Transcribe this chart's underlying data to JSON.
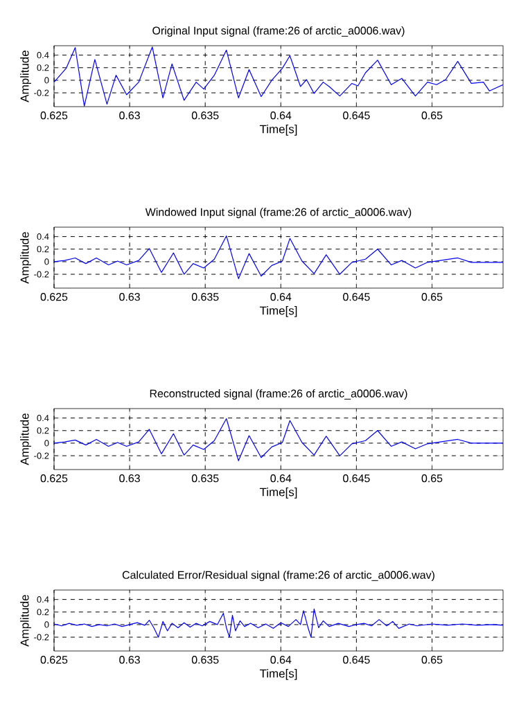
{
  "chart_data": [
    {
      "type": "line",
      "title": "Original Input signal (frame:26 of arctic_a0006.wav)",
      "xlabel": "Time[s]",
      "ylabel": "Amplitude",
      "color": "#0000ff",
      "grid": true,
      "xlim": [
        0.625,
        0.6547
      ],
      "ylim": [
        -0.42,
        0.55
      ],
      "xticks": [
        0.625,
        0.63,
        0.635,
        0.64,
        0.645,
        0.65
      ],
      "yticks": [
        -0.2,
        0,
        0.2,
        0.4
      ],
      "x": [
        0.625,
        0.6254,
        0.6258,
        0.6264,
        0.627,
        0.6277,
        0.6285,
        0.6291,
        0.6298,
        0.6306,
        0.6315,
        0.6322,
        0.6328,
        0.6336,
        0.6344,
        0.6349,
        0.6356,
        0.6364,
        0.6372,
        0.6379,
        0.6387,
        0.6394,
        0.6401,
        0.6406,
        0.6413,
        0.6417,
        0.6422,
        0.6428,
        0.6432,
        0.6439,
        0.6447,
        0.6451,
        0.6456,
        0.6464,
        0.6473,
        0.648,
        0.6489,
        0.6497,
        0.6503,
        0.6509,
        0.6517,
        0.6526,
        0.6534,
        0.6538,
        0.6547
      ],
      "values": [
        -0.03,
        0.08,
        0.19,
        0.52,
        -0.41,
        0.33,
        -0.38,
        0.08,
        -0.23,
        -0.03,
        0.53,
        -0.28,
        0.26,
        -0.32,
        -0.03,
        -0.14,
        0.08,
        0.48,
        -0.28,
        0.17,
        -0.26,
        0.0,
        0.19,
        0.39,
        -0.1,
        0.01,
        -0.21,
        -0.03,
        -0.1,
        -0.25,
        -0.05,
        -0.09,
        0.12,
        0.32,
        -0.07,
        0.03,
        -0.25,
        -0.03,
        -0.07,
        0.01,
        0.3,
        -0.05,
        -0.03,
        -0.17,
        -0.07
      ]
    },
    {
      "type": "line",
      "title": "Windowed Input signal (frame:26 of arctic_a0006.wav)",
      "xlabel": "Time[s]",
      "ylabel": "Amplitude",
      "color": "#0000ff",
      "grid": true,
      "xlim": [
        0.625,
        0.6547
      ],
      "ylim": [
        -0.42,
        0.55
      ],
      "xticks": [
        0.625,
        0.63,
        0.635,
        0.64,
        0.645,
        0.65
      ],
      "yticks": [
        -0.2,
        0,
        0.2,
        0.4
      ],
      "x": [
        0.625,
        0.6257,
        0.6264,
        0.6271,
        0.6278,
        0.6286,
        0.6292,
        0.6298,
        0.6306,
        0.6313,
        0.6321,
        0.6329,
        0.6336,
        0.6342,
        0.6349,
        0.6356,
        0.6364,
        0.6372,
        0.6379,
        0.6387,
        0.6394,
        0.6401,
        0.6406,
        0.6414,
        0.6422,
        0.643,
        0.6439,
        0.6447,
        0.6456,
        0.6464,
        0.6473,
        0.648,
        0.6489,
        0.6497,
        0.6517,
        0.6526,
        0.6547
      ],
      "values": [
        0.0,
        0.02,
        0.06,
        -0.03,
        0.06,
        -0.05,
        0.01,
        -0.05,
        0.02,
        0.21,
        -0.17,
        0.14,
        -0.2,
        -0.03,
        -0.1,
        0.04,
        0.41,
        -0.27,
        0.13,
        -0.23,
        -0.06,
        0.01,
        0.37,
        0.01,
        -0.19,
        0.11,
        -0.2,
        -0.01,
        0.04,
        0.2,
        -0.05,
        0.02,
        -0.1,
        -0.01,
        0.06,
        -0.01,
        -0.01
      ]
    },
    {
      "type": "line",
      "title": "Reconstructed signal (frame:26 of arctic_a0006.wav)",
      "xlabel": "Time[s]",
      "ylabel": "Amplitude",
      "color": "#0000ff",
      "grid": true,
      "xlim": [
        0.625,
        0.6547
      ],
      "ylim": [
        -0.42,
        0.55
      ],
      "xticks": [
        0.625,
        0.63,
        0.635,
        0.64,
        0.645,
        0.65
      ],
      "yticks": [
        -0.2,
        0,
        0.2,
        0.4
      ],
      "x": [
        0.625,
        0.6257,
        0.6264,
        0.6271,
        0.6278,
        0.6286,
        0.6292,
        0.6298,
        0.6306,
        0.6313,
        0.6321,
        0.6329,
        0.6336,
        0.6342,
        0.6349,
        0.6356,
        0.6364,
        0.6372,
        0.6379,
        0.6387,
        0.6394,
        0.6401,
        0.6406,
        0.6414,
        0.6422,
        0.643,
        0.6439,
        0.6447,
        0.6456,
        0.6464,
        0.6473,
        0.648,
        0.6489,
        0.6497,
        0.6517,
        0.6526,
        0.6547
      ],
      "values": [
        0.0,
        0.02,
        0.05,
        -0.03,
        0.06,
        -0.05,
        0.01,
        -0.05,
        0.02,
        0.22,
        -0.17,
        0.15,
        -0.19,
        -0.03,
        -0.1,
        0.04,
        0.39,
        -0.28,
        0.12,
        -0.23,
        -0.06,
        0.01,
        0.36,
        0.01,
        -0.19,
        0.11,
        -0.2,
        -0.01,
        0.04,
        0.2,
        -0.05,
        0.02,
        -0.09,
        -0.01,
        0.06,
        0.0,
        0.0
      ]
    },
    {
      "type": "line",
      "title": "Calculated Error/Residual signal (frame:26 of arctic_a0006.wav)",
      "xlabel": "Time[s]",
      "ylabel": "Amplitude",
      "color": "#0000ff",
      "grid": true,
      "xlim": [
        0.625,
        0.6547
      ],
      "ylim": [
        -0.42,
        0.55
      ],
      "xticks": [
        0.625,
        0.63,
        0.635,
        0.64,
        0.645,
        0.65
      ],
      "yticks": [
        -0.2,
        0,
        0.2,
        0.4
      ],
      "x": [
        0.625,
        0.6255,
        0.626,
        0.6265,
        0.627,
        0.6275,
        0.628,
        0.6285,
        0.629,
        0.6295,
        0.63,
        0.6305,
        0.631,
        0.6313,
        0.6316,
        0.6319,
        0.6322,
        0.6325,
        0.6328,
        0.6332,
        0.6336,
        0.634,
        0.6344,
        0.6348,
        0.6353,
        0.6358,
        0.6362,
        0.6364,
        0.6366,
        0.6368,
        0.637,
        0.6373,
        0.6376,
        0.638,
        0.6385,
        0.639,
        0.6395,
        0.64,
        0.6405,
        0.641,
        0.6413,
        0.6415,
        0.6418,
        0.642,
        0.6422,
        0.6425,
        0.6428,
        0.6432,
        0.6438,
        0.6445,
        0.645,
        0.6455,
        0.646,
        0.6465,
        0.647,
        0.6474,
        0.6478,
        0.6485,
        0.649,
        0.65,
        0.651,
        0.652,
        0.653,
        0.654,
        0.6547
      ],
      "values": [
        0.01,
        -0.02,
        0.02,
        -0.01,
        0.01,
        -0.03,
        0.0,
        -0.02,
        0.01,
        -0.03,
        0.0,
        0.03,
        -0.01,
        0.07,
        -0.05,
        -0.2,
        0.05,
        -0.1,
        0.02,
        -0.05,
        0.03,
        -0.04,
        0.02,
        -0.02,
        0.05,
        0.0,
        0.18,
        -0.05,
        -0.2,
        0.15,
        -0.1,
        0.06,
        -0.03,
        0.02,
        -0.05,
        0.01,
        -0.06,
        0.03,
        -0.03,
        0.08,
        0.0,
        0.22,
        -0.05,
        -0.2,
        0.25,
        -0.05,
        0.06,
        -0.03,
        0.02,
        -0.03,
        0.0,
        0.02,
        -0.02,
        0.08,
        -0.02,
        0.05,
        -0.06,
        0.01,
        -0.02,
        0.01,
        -0.01,
        0.01,
        -0.01,
        0.0,
        -0.01
      ]
    }
  ]
}
